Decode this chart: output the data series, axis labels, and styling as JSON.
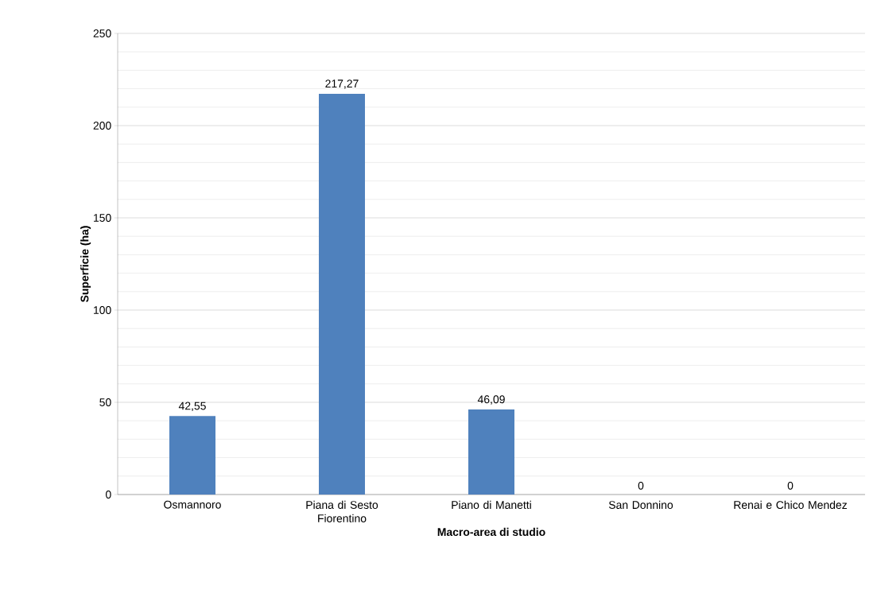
{
  "chart_data": {
    "type": "bar",
    "xlabel": "Macro-area di studio",
    "ylabel": "Superficie (ha)",
    "categories": [
      "Osmannoro",
      "Piana di Sesto Fiorentino",
      "Piano di Manetti",
      "San Donnino",
      "Renai e Chico Mendez"
    ],
    "values": [
      42.55,
      217.27,
      46.09,
      0,
      0
    ],
    "value_labels": [
      "42,55",
      "217,27",
      "46,09",
      "0",
      "0"
    ],
    "color": "#4f81bd",
    "ylim": [
      0,
      250
    ],
    "yticks": [
      0,
      50,
      100,
      150,
      200,
      250
    ],
    "grid": "y"
  }
}
